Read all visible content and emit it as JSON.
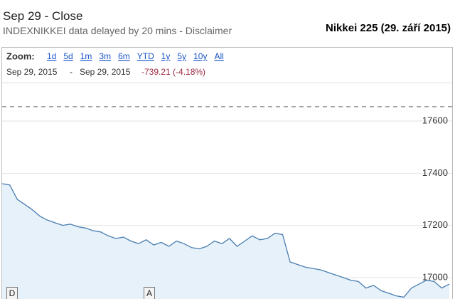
{
  "header": {
    "title": "Sep 29 - Close",
    "subtitle": "INDEXNIKKEI data delayed by 20 mins - Disclaimer",
    "caption": "Nikkei 225 (29. září 2015)"
  },
  "toolbar": {
    "zoom_label": "Zoom:",
    "zoom_options": [
      "1d",
      "5d",
      "1m",
      "3m",
      "6m",
      "YTD",
      "1y",
      "5y",
      "10y",
      "All"
    ],
    "range_start": "Sep 29, 2015",
    "range_separator": "-",
    "range_end": "Sep 29, 2015",
    "change": "-739.21 (-4.18%)"
  },
  "chart_data": {
    "type": "area",
    "series": [
      {
        "color": "#4a7db0",
        "fill": "#e6f1fa",
        "values": [
          17360,
          17355,
          17300,
          17280,
          17260,
          17235,
          17220,
          17210,
          17200,
          17205,
          17195,
          17190,
          17180,
          17175,
          17160,
          17150,
          17155,
          17140,
          17130,
          17145,
          17125,
          17135,
          17120,
          17140,
          17130,
          17115,
          17110,
          17120,
          17140,
          17130,
          17150,
          17120,
          17140,
          17160,
          17145,
          17150,
          17170,
          17165,
          17060,
          17050,
          17040,
          17035,
          17030,
          17020,
          17010,
          17000,
          16990,
          16985,
          16960,
          16970,
          16950,
          16940,
          16930,
          16925,
          16960,
          16975,
          16990,
          16985,
          16960,
          16975
        ]
      }
    ],
    "reference_line": 17655,
    "ylim": [
      16918,
      17742
    ],
    "yticks": [
      17000,
      17200,
      17400,
      17600
    ],
    "grid": true,
    "flags": [
      {
        "label": "D"
      },
      {
        "label": "A"
      }
    ]
  }
}
